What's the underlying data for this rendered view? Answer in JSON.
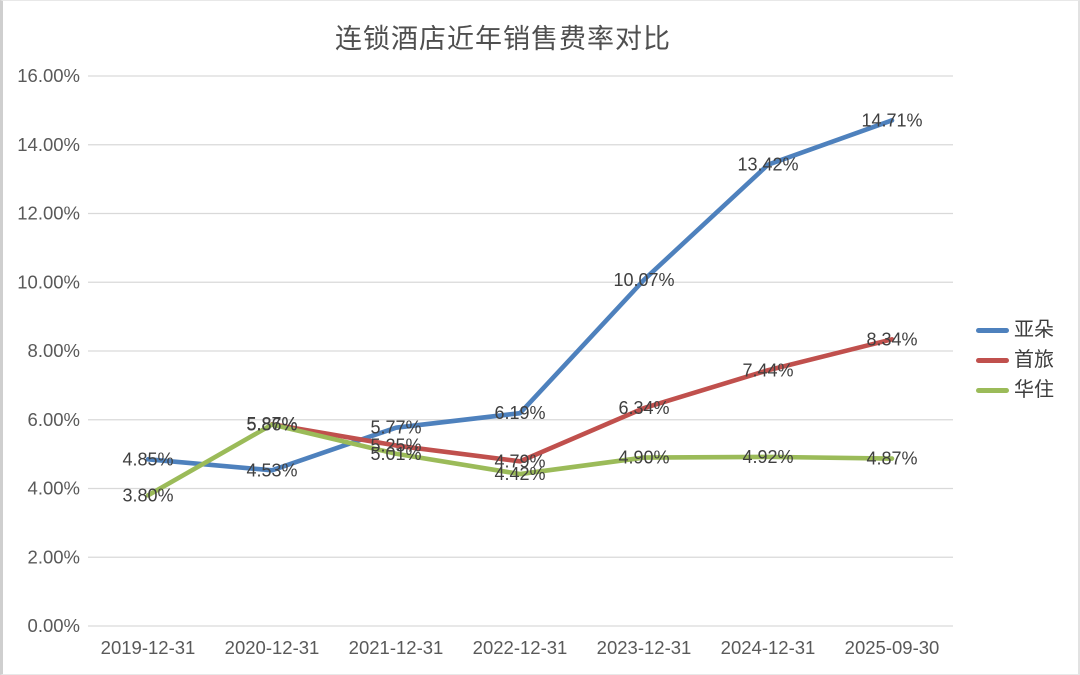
{
  "title": "连锁酒店近年销售费率对比",
  "chart_data": {
    "type": "line",
    "x": [
      "2019-12-31",
      "2020-12-31",
      "2021-12-31",
      "2022-12-31",
      "2023-12-31",
      "2024-12-31",
      "2025-09-30"
    ],
    "series": [
      {
        "name": "亚朵",
        "color": "#4E81BD",
        "values": [
          4.85,
          4.53,
          5.77,
          6.19,
          10.07,
          13.42,
          14.71
        ]
      },
      {
        "name": "首旅",
        "color": "#C0504D",
        "values": [
          null,
          5.87,
          5.25,
          4.79,
          6.34,
          7.44,
          8.34
        ]
      },
      {
        "name": "华住",
        "color": "#9BBB59",
        "values": [
          3.8,
          5.86,
          5.01,
          4.42,
          4.9,
          4.92,
          4.87
        ]
      }
    ],
    "y_ticks": [
      "0.00%",
      "2.00%",
      "4.00%",
      "6.00%",
      "8.00%",
      "10.00%",
      "12.00%",
      "14.00%",
      "16.00%"
    ],
    "ylim": [
      0,
      16
    ],
    "y_tick_step": 2,
    "data_label_format": "0.00%",
    "grid": "horizontal",
    "legend_position": "right",
    "colors": {
      "gridline": "#d9d9d9",
      "axis_text": "#595959",
      "data_label_text": "#3f3f3f",
      "title_text": "#4f4f4f",
      "background": "#ffffff"
    }
  }
}
